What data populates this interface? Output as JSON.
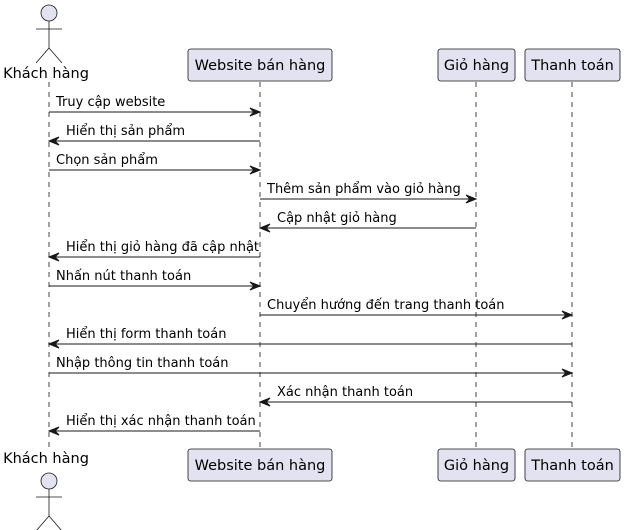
{
  "diagram": {
    "type": "sequence",
    "colors": {
      "participant_fill": "#E2E2F0",
      "participant_border": "#181818",
      "lifeline": "#181818",
      "arrow": "#181818",
      "text": "#000000"
    },
    "participants": [
      {
        "id": "customer",
        "label": "Khách hàng",
        "kind": "actor"
      },
      {
        "id": "website",
        "label": "Website bán hàng",
        "kind": "box"
      },
      {
        "id": "cart",
        "label": "Giỏ hàng",
        "kind": "box"
      },
      {
        "id": "payment",
        "label": "Thanh toán",
        "kind": "box"
      }
    ],
    "messages": [
      {
        "from": "customer",
        "to": "website",
        "label": "Truy cập website"
      },
      {
        "from": "website",
        "to": "customer",
        "label": "Hiển thị sản phẩm"
      },
      {
        "from": "customer",
        "to": "website",
        "label": "Chọn sản phẩm"
      },
      {
        "from": "website",
        "to": "cart",
        "label": "Thêm sản phẩm vào giỏ hàng"
      },
      {
        "from": "cart",
        "to": "website",
        "label": "Cập nhật giỏ hàng"
      },
      {
        "from": "website",
        "to": "customer",
        "label": "Hiển thị giỏ hàng đã cập nhật"
      },
      {
        "from": "customer",
        "to": "website",
        "label": "Nhấn nút thanh toán"
      },
      {
        "from": "website",
        "to": "payment",
        "label": "Chuyển hướng đến trang thanh toán"
      },
      {
        "from": "payment",
        "to": "customer",
        "label": "Hiển thị form thanh toán"
      },
      {
        "from": "customer",
        "to": "payment",
        "label": "Nhập thông tin thanh toán"
      },
      {
        "from": "payment",
        "to": "website",
        "label": "Xác nhận thanh toán"
      },
      {
        "from": "website",
        "to": "customer",
        "label": "Hiển thị xác nhận thanh toán"
      }
    ]
  }
}
